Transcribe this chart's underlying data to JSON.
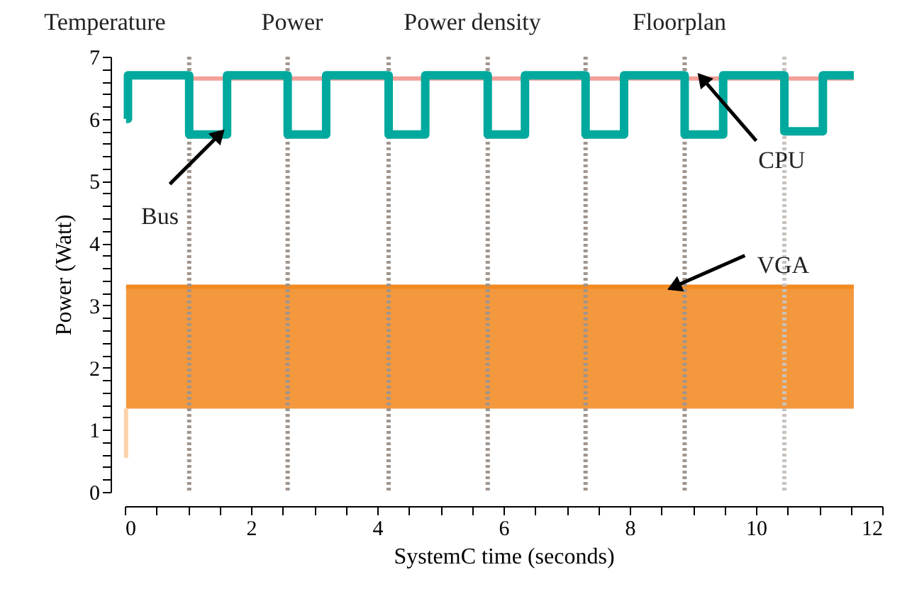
{
  "chart_data": {
    "type": "step",
    "xlabel": "SystemC time (seconds)",
    "ylabel": "Power (Watt)",
    "xlim": [
      0,
      12
    ],
    "ylim": [
      0,
      7
    ],
    "xticks": [
      0,
      {
        "value": 0.5,
        "label": null
      },
      {
        "value": 1,
        "label": null
      },
      {
        "value": 1.5,
        "label": null
      },
      2,
      {
        "value": 2.5,
        "label": null
      },
      {
        "value": 3,
        "label": null
      },
      {
        "value": 3.5,
        "label": null
      },
      4,
      {
        "value": 4.5,
        "label": null
      },
      {
        "value": 5,
        "label": null
      },
      {
        "value": 5.5,
        "label": null
      },
      6,
      {
        "value": 6.5,
        "label": null
      },
      {
        "value": 7,
        "label": null
      },
      {
        "value": 7.5,
        "label": null
      },
      8,
      {
        "value": 8.5,
        "label": null
      },
      {
        "value": 9,
        "label": null
      },
      {
        "value": 9.5,
        "label": null
      },
      10,
      {
        "value": 10.5,
        "label": null
      },
      {
        "value": 11,
        "label": null
      },
      {
        "value": 11.5,
        "label": null
      },
      12
    ],
    "yticks": [
      0,
      {
        "value": 0.2,
        "label": null
      },
      {
        "value": 0.4,
        "label": null
      },
      {
        "value": 0.6,
        "label": null
      },
      {
        "value": 0.8,
        "label": null
      },
      1,
      {
        "value": 1.2,
        "label": null
      },
      {
        "value": 1.4,
        "label": null
      },
      {
        "value": 1.6,
        "label": null
      },
      {
        "value": 1.8,
        "label": null
      },
      2,
      {
        "value": 2.2,
        "label": null
      },
      {
        "value": 2.4,
        "label": null
      },
      {
        "value": 2.6,
        "label": null
      },
      {
        "value": 2.8,
        "label": null
      },
      3,
      {
        "value": 3.2,
        "label": null
      },
      {
        "value": 3.4,
        "label": null
      },
      {
        "value": 3.6,
        "label": null
      },
      {
        "value": 3.8,
        "label": null
      },
      4,
      {
        "value": 4.2,
        "label": null
      },
      {
        "value": 4.4,
        "label": null
      },
      {
        "value": 4.6,
        "label": null
      },
      {
        "value": 4.8,
        "label": null
      },
      5,
      {
        "value": 5.2,
        "label": null
      },
      {
        "value": 5.4,
        "label": null
      },
      {
        "value": 5.6,
        "label": null
      },
      {
        "value": 5.8,
        "label": null
      },
      6,
      {
        "value": 6.2,
        "label": null
      },
      {
        "value": 6.4,
        "label": null
      },
      {
        "value": 6.6,
        "label": null
      },
      {
        "value": 6.8,
        "label": null
      },
      7
    ],
    "series": [
      {
        "type": "line",
        "color": "#f28a22",
        "x": [
          0.02,
          11.55
        ],
        "values": [
          3.3,
          3.3
        ],
        "lower": [
          1.34,
          1.34
        ],
        "upper": [
          3.3,
          3.3
        ]
      },
      {
        "type": "line",
        "color": "#fcd2a8",
        "x": [
          0.02,
          0.02
        ],
        "values": [
          0.55,
          1.34
        ]
      },
      {
        "type": "line",
        "color": "#f4a09a",
        "x": [
          1.02,
          11.55
        ],
        "values": [
          6.65,
          6.65
        ]
      },
      {
        "color": "#00a99d",
        "x": [
          0.02,
          0.05,
          1.02,
          1.62,
          2.58,
          3.19,
          4.18,
          4.76,
          5.75,
          6.34,
          7.3,
          7.91,
          8.87,
          9.48,
          10.45,
          11.06,
          11.55
        ],
        "values": [
          6.0,
          6.7,
          5.75,
          6.7,
          5.75,
          6.7,
          5.75,
          6.7,
          5.75,
          6.7,
          5.75,
          6.7,
          5.75,
          6.7,
          5.8,
          6.7,
          6.7
        ]
      }
    ],
    "ref_lines": [
      {
        "axis": "x",
        "value": 1.02,
        "color": "#a0958d",
        "line_style": "dotted"
      },
      {
        "axis": "x",
        "value": 2.58,
        "color": "#a0958d",
        "line_style": "dotted"
      },
      {
        "axis": "x",
        "value": 4.18,
        "color": "#a0958d",
        "line_style": "dotted"
      },
      {
        "axis": "x",
        "value": 5.75,
        "color": "#a0958d",
        "line_style": "dotted"
      },
      {
        "axis": "x",
        "value": 7.3,
        "color": "#a0958d",
        "line_style": "dotted"
      },
      {
        "axis": "x",
        "value": 8.87,
        "color": "#a0958d",
        "line_style": "dotted"
      },
      {
        "axis": "x",
        "value": 10.45,
        "color": "#c8c2bd",
        "line_style": "dotted"
      }
    ],
    "annotations": [
      "Temperature",
      "Power",
      "Power density",
      "Floorplan",
      {
        "text": "Bus",
        "x": 1.5,
        "y": 5.75
      },
      {
        "text": "CPU",
        "x": 9.15,
        "y": 6.65
      },
      {
        "text": "VGA",
        "x": 8.7,
        "y": 3.3
      }
    ],
    "grid": false
  }
}
